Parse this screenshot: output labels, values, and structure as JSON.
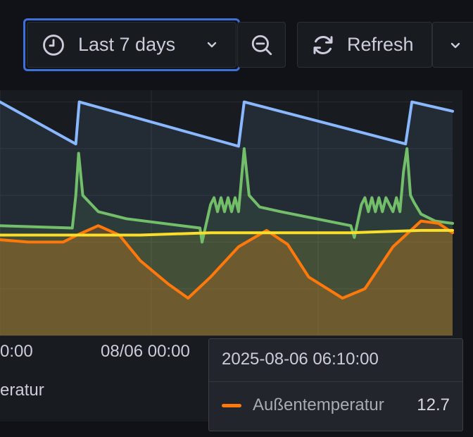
{
  "toolbar": {
    "time_range_label": "Last 7 days",
    "refresh_label": "Refresh"
  },
  "panel": {
    "x_ticks": [
      "0:00",
      "08/06 00:00"
    ],
    "legend_partial": "eratur"
  },
  "tooltip": {
    "time": "2025-08-06 06:10:00",
    "series_name": "Außentemperatur",
    "series_color": "#ff780a",
    "value": "12.7"
  },
  "colors": {
    "accent_focus": "#3d71d9",
    "series_blue": "#8ab8ff",
    "series_green": "#73bf69",
    "series_yellow": "#fade2a",
    "series_orange": "#ff780a"
  },
  "icons": {
    "time_range": "clock-icon",
    "time_range_caret": "chevron-down-icon",
    "zoom": "zoom-out-icon",
    "refresh": "refresh-icon",
    "refresh_caret": "chevron-down-icon"
  },
  "chart_data": {
    "type": "line",
    "series": [
      {
        "color": "#8ab8ff",
        "x": [
          0,
          108,
          113,
          340,
          348,
          578,
          587,
          645
        ],
        "values": [
          100,
          82,
          100,
          81,
          100,
          82,
          100,
          96
        ]
      },
      {
        "color": "#73bf69",
        "x": [
          0,
          103,
          108,
          112,
          118,
          140,
          180,
          285,
          288,
          300,
          305,
          310,
          315,
          320,
          325,
          330,
          335,
          340,
          345,
          348,
          355,
          370,
          400,
          500,
          505,
          515,
          520,
          525,
          530,
          535,
          540,
          545,
          550,
          560,
          565,
          570,
          575,
          580,
          585,
          590,
          600,
          620,
          645
        ],
        "values": [
          47,
          46,
          60,
          78,
          60,
          53,
          50,
          46,
          40,
          56,
          59,
          53,
          59,
          53,
          59,
          53,
          59,
          53,
          70,
          80,
          60,
          55,
          53,
          47,
          42,
          56,
          59,
          53,
          59,
          53,
          59,
          53,
          59,
          53,
          59,
          53,
          70,
          80,
          60,
          57,
          52,
          49,
          48
        ]
      },
      {
        "color": "#fade2a",
        "x": [
          0,
          100,
          200,
          300,
          400,
          500,
          600,
          645
        ],
        "values": [
          43,
          43,
          43,
          44,
          44,
          44,
          45,
          45
        ]
      },
      {
        "color": "#ff780a",
        "x": [
          0,
          40,
          90,
          110,
          140,
          170,
          200,
          240,
          268,
          300,
          340,
          380,
          410,
          440,
          488,
          520,
          560,
          600,
          625,
          645
        ],
        "values": [
          41,
          40,
          40,
          43,
          47,
          43,
          32,
          22,
          16,
          25,
          38,
          45,
          39,
          25,
          16,
          20,
          38,
          49,
          48,
          44
        ]
      }
    ],
    "ylim": [
      0,
      105
    ],
    "xlim": [
      0,
      645
    ],
    "grid": true
  }
}
